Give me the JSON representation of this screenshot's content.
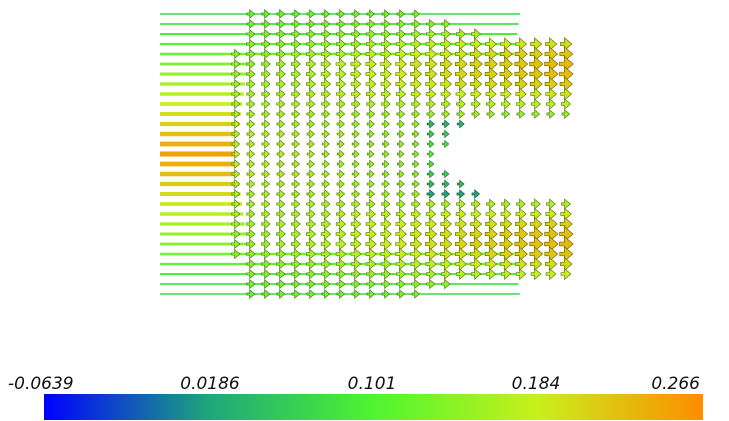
{
  "visualization": {
    "type": "vector-glyph-field",
    "scalar_range": [
      -0.0639,
      0.266
    ]
  },
  "colorbar": {
    "colors": [
      "#0000ff",
      "#1fa67a",
      "#4ef530",
      "#c8f01c",
      "#ff8c00"
    ],
    "ticks": [
      "-0.0639",
      "0.0186",
      "0.101",
      "0.184",
      "0.266"
    ]
  }
}
